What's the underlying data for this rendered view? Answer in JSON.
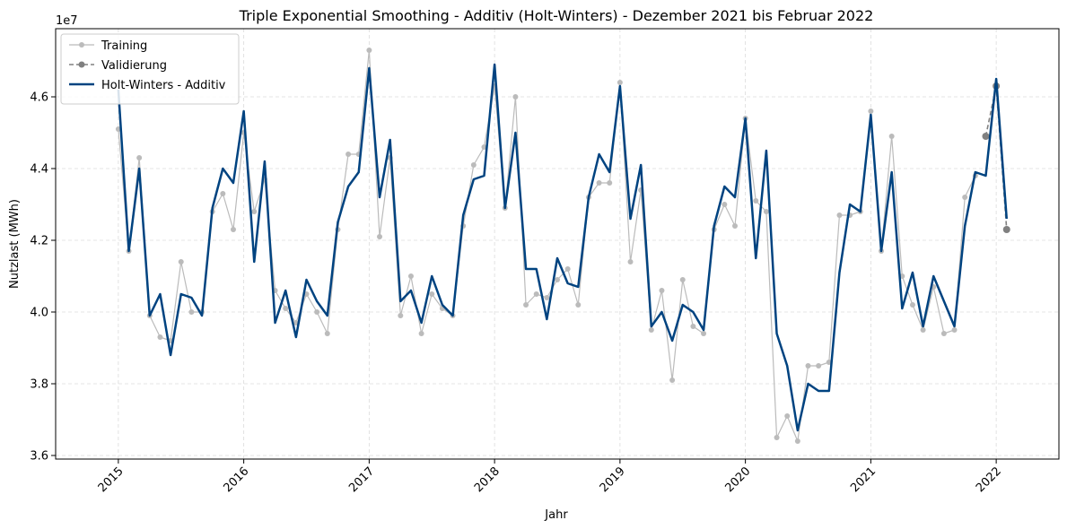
{
  "chart_data": {
    "type": "line",
    "title": "Triple Exponential Smoothing - Additiv (Holt-Winters) - Dezember 2021 bis Februar 2022",
    "xlabel": "Jahr",
    "ylabel": "Nutzlast (MWh)",
    "y_scale_label": "1e7",
    "xlim": [
      2014.5,
      2022.5
    ],
    "ylim": [
      3.59,
      4.79
    ],
    "x_ticks": [
      2015,
      2016,
      2017,
      2018,
      2019,
      2020,
      2021,
      2022
    ],
    "x_tick_labels": [
      "2015",
      "2016",
      "2017",
      "2018",
      "2019",
      "2020",
      "2021",
      "2022"
    ],
    "y_ticks": [
      3.6,
      3.8,
      4.0,
      4.2,
      4.4,
      4.6
    ],
    "y_tick_labels": [
      "3.6",
      "3.8",
      "4.0",
      "4.2",
      "4.4",
      "4.6"
    ],
    "grid": true,
    "legend_position": "top-left",
    "series": [
      {
        "name": "Training",
        "color": "#bbbbbb",
        "style": "solid-markers",
        "x": [
          2015,
          2015.0833,
          2015.1667,
          2015.25,
          2015.3333,
          2015.4167,
          2015.5,
          2015.5833,
          2015.6667,
          2015.75,
          2015.8333,
          2015.9167,
          2016,
          2016.0833,
          2016.1667,
          2016.25,
          2016.3333,
          2016.4167,
          2016.5,
          2016.5833,
          2016.6667,
          2016.75,
          2016.8333,
          2016.9167,
          2017,
          2017.0833,
          2017.1667,
          2017.25,
          2017.3333,
          2017.4167,
          2017.5,
          2017.5833,
          2017.6667,
          2017.75,
          2017.8333,
          2017.9167,
          2018,
          2018.0833,
          2018.1667,
          2018.25,
          2018.3333,
          2018.4167,
          2018.5,
          2018.5833,
          2018.6667,
          2018.75,
          2018.8333,
          2018.9167,
          2019,
          2019.0833,
          2019.1667,
          2019.25,
          2019.3333,
          2019.4167,
          2019.5,
          2019.5833,
          2019.6667,
          2019.75,
          2019.8333,
          2019.9167,
          2020,
          2020.0833,
          2020.1667,
          2020.25,
          2020.3333,
          2020.4167,
          2020.5,
          2020.5833,
          2020.6667,
          2020.75,
          2020.8333,
          2020.9167,
          2021,
          2021.0833,
          2021.1667,
          2021.25,
          2021.3333,
          2021.4167,
          2021.5,
          2021.5833,
          2021.6667,
          2021.75,
          2021.8333
        ],
        "values": [
          4.51,
          4.17,
          4.43,
          3.99,
          3.93,
          3.92,
          4.14,
          4.0,
          4.0,
          4.28,
          4.33,
          4.23,
          4.5,
          4.28,
          4.37,
          4.06,
          4.01,
          3.97,
          4.05,
          4.0,
          3.94,
          4.23,
          4.44,
          4.44,
          4.73,
          4.21,
          4.43,
          3.99,
          4.1,
          3.94,
          4.05,
          4.01,
          3.99,
          4.24,
          4.41,
          4.46,
          4.63,
          4.29,
          4.6,
          4.02,
          4.05,
          4.04,
          4.09,
          4.12,
          4.02,
          4.32,
          4.36,
          4.36,
          4.64,
          4.14,
          4.34,
          3.95,
          4.06,
          3.81,
          4.09,
          3.96,
          3.94,
          4.23,
          4.3,
          4.24,
          4.54,
          4.31,
          4.28,
          3.65,
          3.71,
          3.64,
          3.85,
          3.85,
          3.86,
          4.27,
          4.27,
          4.28,
          4.56,
          4.17,
          4.49,
          4.1,
          4.02,
          3.95,
          4.07,
          3.94,
          3.95,
          4.32,
          4.38
        ]
      },
      {
        "name": "Validierung",
        "color": "#808080",
        "style": "dashed-markers",
        "x": [
          2021.9167,
          2022,
          2022.0833
        ],
        "values": [
          4.49,
          4.63,
          4.23
        ]
      },
      {
        "name": "Holt-Winters - Additiv",
        "color": "#004380",
        "style": "solid",
        "x": [
          2015,
          2015.0833,
          2015.1667,
          2015.25,
          2015.3333,
          2015.4167,
          2015.5,
          2015.5833,
          2015.6667,
          2015.75,
          2015.8333,
          2015.9167,
          2016,
          2016.0833,
          2016.1667,
          2016.25,
          2016.3333,
          2016.4167,
          2016.5,
          2016.5833,
          2016.6667,
          2016.75,
          2016.8333,
          2016.9167,
          2017,
          2017.0833,
          2017.1667,
          2017.25,
          2017.3333,
          2017.4167,
          2017.5,
          2017.5833,
          2017.6667,
          2017.75,
          2017.8333,
          2017.9167,
          2018,
          2018.0833,
          2018.1667,
          2018.25,
          2018.3333,
          2018.4167,
          2018.5,
          2018.5833,
          2018.6667,
          2018.75,
          2018.8333,
          2018.9167,
          2019,
          2019.0833,
          2019.1667,
          2019.25,
          2019.3333,
          2019.4167,
          2019.5,
          2019.5833,
          2019.6667,
          2019.75,
          2019.8333,
          2019.9167,
          2020,
          2020.0833,
          2020.1667,
          2020.25,
          2020.3333,
          2020.4167,
          2020.5,
          2020.5833,
          2020.6667,
          2020.75,
          2020.8333,
          2020.9167,
          2021,
          2021.0833,
          2021.1667,
          2021.25,
          2021.3333,
          2021.4167,
          2021.5,
          2021.5833,
          2021.6667,
          2021.75,
          2021.8333,
          2021.9167,
          2022,
          2022.0833
        ],
        "values": [
          4.62,
          4.17,
          4.4,
          3.99,
          4.05,
          3.88,
          4.05,
          4.04,
          3.99,
          4.29,
          4.4,
          4.36,
          4.56,
          4.14,
          4.42,
          3.97,
          4.06,
          3.93,
          4.09,
          4.03,
          3.99,
          4.25,
          4.35,
          4.39,
          4.68,
          4.32,
          4.48,
          4.03,
          4.06,
          3.97,
          4.1,
          4.02,
          3.99,
          4.27,
          4.37,
          4.38,
          4.69,
          4.29,
          4.5,
          4.12,
          4.12,
          3.98,
          4.15,
          4.08,
          4.07,
          4.32,
          4.44,
          4.39,
          4.63,
          4.26,
          4.41,
          3.96,
          4.0,
          3.92,
          4.02,
          4.0,
          3.95,
          4.24,
          4.35,
          4.32,
          4.54,
          4.15,
          4.45,
          3.94,
          3.85,
          3.67,
          3.8,
          3.78,
          3.78,
          4.11,
          4.3,
          4.28,
          4.55,
          4.17,
          4.39,
          4.01,
          4.11,
          3.96,
          4.1,
          4.03,
          3.96,
          4.24,
          4.39,
          4.38,
          4.65,
          4.26
        ]
      }
    ]
  }
}
